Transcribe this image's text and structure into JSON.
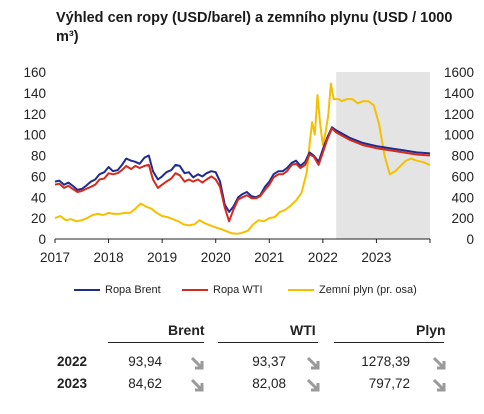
{
  "title": "Výhled cen ropy (USD/barel) a zemního plynu (USD / 1000 m³)",
  "chart_data": {
    "type": "line",
    "title": "Výhled cen ropy (USD/barel) a zemního plynu (USD / 1000 m³)",
    "x_ticks": [
      "2017",
      "2018",
      "2019",
      "2020",
      "2021",
      "2022",
      "2023"
    ],
    "y_left": {
      "ticks": [
        "0",
        "20",
        "40",
        "60",
        "80",
        "100",
        "120",
        "140",
        "160"
      ],
      "range": [
        0,
        160
      ]
    },
    "y_right": {
      "ticks": [
        "0",
        "200",
        "400",
        "600",
        "800",
        "1000",
        "1200",
        "1400",
        "1600"
      ],
      "range": [
        0,
        1600
      ]
    },
    "forecast_shading_start": 2022.25,
    "x_range": [
      2017.0,
      2024.0
    ],
    "series": [
      {
        "name": "Ropa Brent",
        "color": "#1f2c8f",
        "axis": "left",
        "x": [
          2017.0,
          2017.08,
          2017.17,
          2017.25,
          2017.33,
          2017.42,
          2017.5,
          2017.58,
          2017.67,
          2017.75,
          2017.83,
          2017.92,
          2018.0,
          2018.08,
          2018.17,
          2018.25,
          2018.33,
          2018.42,
          2018.5,
          2018.58,
          2018.67,
          2018.75,
          2018.83,
          2018.92,
          2019.0,
          2019.08,
          2019.17,
          2019.25,
          2019.33,
          2019.42,
          2019.5,
          2019.58,
          2019.67,
          2019.75,
          2019.83,
          2019.92,
          2020.0,
          2020.08,
          2020.17,
          2020.25,
          2020.33,
          2020.42,
          2020.5,
          2020.58,
          2020.67,
          2020.75,
          2020.83,
          2020.92,
          2021.0,
          2021.08,
          2021.17,
          2021.25,
          2021.33,
          2021.42,
          2021.5,
          2021.58,
          2021.67,
          2021.75,
          2021.83,
          2021.92,
          2022.0,
          2022.08,
          2022.17,
          2022.25,
          2022.5,
          2022.75,
          2023.0,
          2023.25,
          2023.5,
          2023.75,
          2024.0
        ],
        "values": [
          55,
          56,
          52,
          54,
          51,
          47,
          48,
          51,
          55,
          57,
          62,
          64,
          69,
          65,
          66,
          71,
          77,
          75,
          74,
          72,
          78,
          80,
          65,
          57,
          60,
          64,
          66,
          71,
          70,
          63,
          64,
          59,
          62,
          60,
          63,
          65,
          64,
          55,
          33,
          26,
          31,
          40,
          43,
          45,
          41,
          40,
          42,
          50,
          55,
          62,
          65,
          65,
          68,
          73,
          75,
          70,
          74,
          83,
          80,
          74,
          86,
          97,
          107,
          104,
          97,
          92,
          89,
          87,
          85,
          83,
          82
        ]
      },
      {
        "name": "Ropa WTI",
        "color": "#d62a1e",
        "axis": "left",
        "x": [
          2017.0,
          2017.08,
          2017.17,
          2017.25,
          2017.33,
          2017.42,
          2017.5,
          2017.58,
          2017.67,
          2017.75,
          2017.83,
          2017.92,
          2018.0,
          2018.08,
          2018.17,
          2018.25,
          2018.33,
          2018.42,
          2018.5,
          2018.58,
          2018.67,
          2018.75,
          2018.83,
          2018.92,
          2019.0,
          2019.08,
          2019.17,
          2019.25,
          2019.33,
          2019.42,
          2019.5,
          2019.58,
          2019.67,
          2019.75,
          2019.83,
          2019.92,
          2020.0,
          2020.08,
          2020.17,
          2020.25,
          2020.33,
          2020.42,
          2020.5,
          2020.58,
          2020.67,
          2020.75,
          2020.83,
          2020.92,
          2021.0,
          2021.08,
          2021.17,
          2021.25,
          2021.33,
          2021.42,
          2021.5,
          2021.58,
          2021.67,
          2021.75,
          2021.83,
          2021.92,
          2022.0,
          2022.08,
          2022.17,
          2022.25,
          2022.5,
          2022.75,
          2023.0,
          2023.25,
          2023.5,
          2023.75,
          2024.0
        ],
        "values": [
          52,
          53,
          49,
          51,
          48,
          45,
          46,
          48,
          50,
          52,
          57,
          58,
          63,
          62,
          63,
          66,
          70,
          67,
          70,
          68,
          70,
          71,
          57,
          49,
          52,
          55,
          58,
          63,
          61,
          55,
          57,
          55,
          57,
          54,
          57,
          60,
          57,
          50,
          30,
          17,
          28,
          38,
          40,
          42,
          39,
          39,
          41,
          47,
          52,
          59,
          62,
          62,
          65,
          71,
          72,
          68,
          71,
          81,
          79,
          71,
          83,
          95,
          106,
          102,
          95,
          90,
          87,
          85,
          83,
          81,
          80
        ]
      },
      {
        "name": "Zemní plyn (pr. osa)",
        "color": "#f5c000",
        "axis": "right",
        "x": [
          2017.0,
          2017.1,
          2017.2,
          2017.3,
          2017.4,
          2017.5,
          2017.6,
          2017.7,
          2017.8,
          2017.9,
          2018.0,
          2018.1,
          2018.2,
          2018.3,
          2018.4,
          2018.5,
          2018.6,
          2018.7,
          2018.8,
          2018.9,
          2019.0,
          2019.1,
          2019.2,
          2019.3,
          2019.4,
          2019.5,
          2019.6,
          2019.7,
          2019.8,
          2019.9,
          2020.0,
          2020.1,
          2020.2,
          2020.3,
          2020.4,
          2020.5,
          2020.6,
          2020.7,
          2020.8,
          2020.9,
          2021.0,
          2021.1,
          2021.2,
          2021.3,
          2021.4,
          2021.5,
          2021.6,
          2021.7,
          2021.75,
          2021.8,
          2021.85,
          2021.9,
          2021.95,
          2022.0,
          2022.05,
          2022.1,
          2022.15,
          2022.2,
          2022.25,
          2022.3,
          2022.35,
          2022.45,
          2022.55,
          2022.65,
          2022.75,
          2022.85,
          2022.95,
          2023.05,
          2023.15,
          2023.25,
          2023.35,
          2023.45,
          2023.55,
          2023.65,
          2023.75,
          2023.85,
          2023.95,
          2024.0
        ],
        "values": [
          200,
          220,
          180,
          190,
          170,
          180,
          200,
          230,
          240,
          230,
          250,
          240,
          240,
          250,
          250,
          290,
          340,
          310,
          290,
          250,
          220,
          210,
          190,
          170,
          140,
          130,
          140,
          180,
          150,
          130,
          110,
          95,
          75,
          55,
          50,
          60,
          80,
          140,
          180,
          170,
          200,
          210,
          260,
          280,
          320,
          370,
          440,
          640,
          900,
          1120,
          1000,
          1380,
          1100,
          900,
          1020,
          1180,
          1490,
          1340,
          1340,
          1340,
          1320,
          1340,
          1340,
          1300,
          1320,
          1320,
          1280,
          1100,
          800,
          620,
          650,
          700,
          750,
          770,
          750,
          740,
          720,
          710
        ]
      }
    ]
  },
  "legend": [
    {
      "label": "Ropa Brent",
      "color": "#1f2c8f"
    },
    {
      "label": "Ropa WTI",
      "color": "#d62a1e"
    },
    {
      "label": "Zemní plyn (pr. osa)",
      "color": "#f5c000"
    }
  ],
  "table": {
    "headers": {
      "brent": "Brent",
      "wti": "WTI",
      "plyn": "Plyn"
    },
    "rows": [
      {
        "year": "2022",
        "brent": "93,94",
        "wti": "93,37",
        "plyn": "1278,39",
        "arrow_icon": "arrow-diagonal-icon"
      },
      {
        "year": "2023",
        "brent": "84,62",
        "wti": "82,08",
        "plyn": "797,72",
        "arrow_icon": "arrow-diagonal-icon"
      }
    ]
  }
}
